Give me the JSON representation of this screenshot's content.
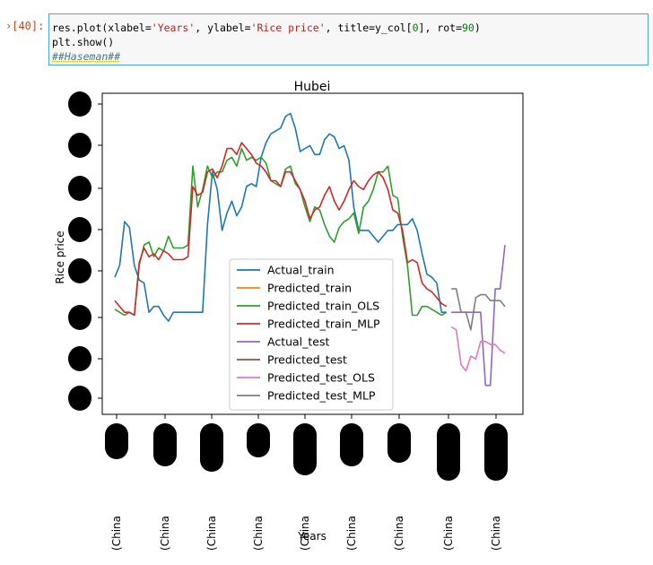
{
  "cell": {
    "prompt": "[40]:",
    "line1": {
      "pre": "res.plot(xlabel=",
      "s1": "'Years'",
      "mid1": ", ylabel=",
      "s2": "'Rice price'",
      "mid2": ", title=y_col[",
      "n1": "0",
      "mid3": "], rot=",
      "n2": "90",
      "post": ")"
    },
    "line2": "plt.show()",
    "line3": "##Haseman##"
  },
  "chart_data": {
    "type": "line",
    "title": "Hubei",
    "xlabel": "Years",
    "ylabel": "Rice price",
    "x_tick_labels": [
      "(China",
      "(China",
      "(China",
      "(China",
      "(China",
      "(China",
      "(China",
      "(China",
      "(China"
    ],
    "legend_position": "lower-center",
    "grid": false,
    "x_range": [
      0,
      80
    ],
    "y_range": [
      0,
      100
    ],
    "series": [
      {
        "name": "Actual_train",
        "color": "#1f77b4",
        "x": [
          0,
          1,
          2,
          3,
          4,
          5,
          6,
          7,
          8,
          9,
          10,
          11,
          12,
          13,
          14,
          15,
          16,
          17,
          18,
          19,
          20,
          21,
          22,
          23,
          24,
          25,
          26,
          27,
          28,
          29,
          30,
          31,
          32,
          33,
          34,
          35,
          36,
          37,
          38,
          39,
          40,
          41,
          42,
          43,
          44,
          45,
          46,
          47,
          48,
          49,
          50,
          51,
          52,
          53,
          54,
          55,
          56,
          57,
          58,
          59,
          60,
          61,
          62,
          63,
          64,
          65,
          66,
          67,
          68
        ],
        "y": [
          42,
          46,
          61,
          59,
          46,
          41,
          40,
          30,
          32,
          32,
          29,
          27,
          30,
          30,
          30,
          30,
          30,
          30,
          30,
          60,
          78,
          72,
          58,
          64,
          68,
          63,
          66,
          73,
          74,
          73,
          83,
          88,
          91,
          92,
          93,
          97,
          98,
          93,
          85,
          86,
          87,
          84,
          84,
          89,
          91,
          90,
          86,
          87,
          82,
          66,
          58,
          58,
          58,
          56,
          54,
          56,
          58,
          58,
          60,
          60,
          60,
          62,
          58,
          50,
          43,
          42,
          40,
          30,
          30
        ]
      },
      {
        "name": "Predicted_train",
        "color": "#ff7f0e",
        "x": [],
        "y": []
      },
      {
        "name": "Predicted_train_OLS",
        "color": "#2ca02c",
        "x": [
          0,
          1,
          2,
          3,
          4,
          5,
          6,
          7,
          8,
          9,
          10,
          11,
          12,
          13,
          14,
          15,
          16,
          17,
          18,
          19,
          20,
          21,
          22,
          23,
          24,
          25,
          26,
          27,
          28,
          29,
          30,
          31,
          32,
          33,
          34,
          35,
          36,
          37,
          38,
          39,
          40,
          41,
          42,
          43,
          44,
          45,
          46,
          47,
          48,
          49,
          50,
          51,
          52,
          53,
          54,
          55,
          56,
          57,
          58,
          59,
          60,
          61,
          62,
          63,
          64,
          65,
          66,
          67,
          68
        ],
        "y": [
          31,
          30,
          29,
          30,
          29,
          46,
          53,
          54,
          49,
          52,
          51,
          56,
          52,
          52,
          52,
          53,
          80,
          66,
          72,
          80,
          76,
          78,
          78,
          82,
          83,
          80,
          86,
          82,
          83,
          82,
          83,
          81,
          75,
          74,
          73,
          79,
          80,
          74,
          72,
          66,
          61,
          66,
          65,
          60,
          56,
          54,
          59,
          61,
          62,
          64,
          57,
          66,
          68,
          72,
          78,
          78,
          80,
          70,
          69,
          56,
          46,
          29,
          29,
          32,
          32,
          31,
          30,
          29,
          30
        ]
      },
      {
        "name": "Predicted_train_MLP",
        "color": "#d62728",
        "x": [
          0,
          1,
          2,
          3,
          4,
          5,
          6,
          7,
          8,
          9,
          10,
          11,
          12,
          13,
          14,
          15,
          16,
          17,
          18,
          19,
          20,
          21,
          22,
          23,
          24,
          25,
          26,
          27,
          28,
          29,
          30,
          31,
          32,
          33,
          34,
          35,
          36,
          37,
          38,
          39,
          40,
          41,
          42,
          43,
          44,
          45,
          46,
          47,
          48,
          49,
          50,
          51,
          52,
          53,
          54,
          55,
          56,
          57,
          58,
          59,
          60,
          61,
          62,
          63,
          64,
          65,
          66,
          67,
          68
        ],
        "y": [
          34,
          32,
          30,
          30,
          29,
          47,
          52,
          49,
          50,
          48,
          51,
          50,
          48,
          48,
          48,
          49,
          73,
          70,
          71,
          78,
          79,
          76,
          80,
          86,
          86,
          84,
          88,
          86,
          84,
          81,
          80,
          78,
          75,
          75,
          73,
          78,
          78,
          75,
          72,
          68,
          62,
          65,
          66,
          70,
          73,
          68,
          65,
          68,
          72,
          75,
          73,
          72,
          75,
          77,
          78,
          76,
          72,
          65,
          64,
          58,
          47,
          48,
          47,
          40,
          38,
          37,
          35,
          33,
          32
        ]
      },
      {
        "name": "Actual_test",
        "color": "#9467bd",
        "x": [
          69,
          70,
          71,
          72,
          73,
          74,
          75,
          76,
          77,
          78,
          79,
          80
        ],
        "y": [
          30,
          30,
          30,
          30,
          30,
          30,
          30,
          5,
          5,
          38,
          38,
          53
        ]
      },
      {
        "name": "Predicted_test",
        "color": "#8c564b",
        "x": [],
        "y": []
      },
      {
        "name": "Predicted_test_OLS",
        "color": "#e377c2",
        "x": [
          69,
          70,
          71,
          72,
          73,
          74,
          75,
          76,
          77,
          78,
          79,
          80
        ],
        "y": [
          25,
          24,
          12,
          10,
          15,
          14,
          20,
          20,
          19,
          19,
          17,
          16
        ]
      },
      {
        "name": "Predicted_test_MLP",
        "color": "#7f7f7f",
        "x": [
          69,
          70,
          71,
          72,
          73,
          74,
          75,
          76,
          77,
          78,
          79,
          80
        ],
        "y": [
          38,
          38,
          30,
          30,
          24,
          35,
          36,
          36,
          34,
          34,
          34,
          32
        ]
      }
    ]
  }
}
